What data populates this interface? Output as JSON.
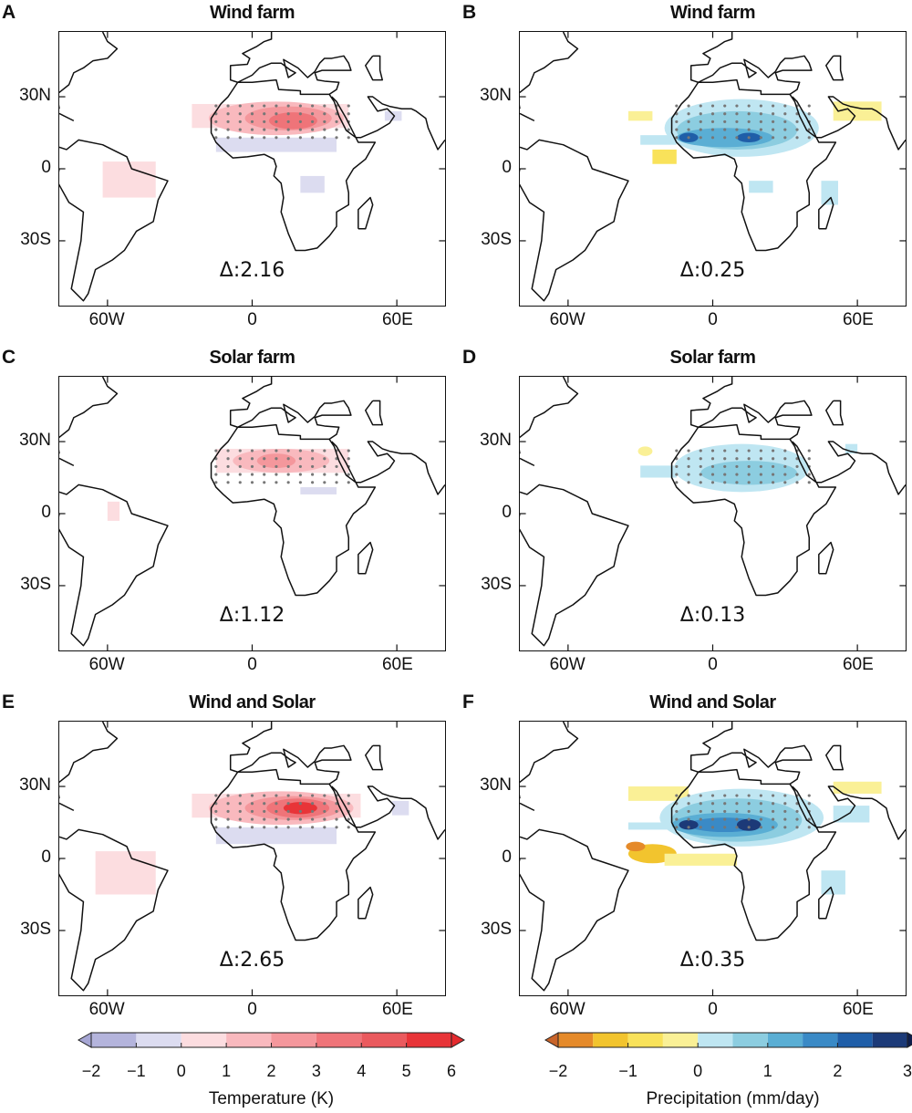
{
  "panels": [
    {
      "letter": "A",
      "title": "Wind farm",
      "delta": "Δ:2.16",
      "variable": "temperature"
    },
    {
      "letter": "B",
      "title": "Wind farm",
      "delta": "Δ:0.25",
      "variable": "precipitation"
    },
    {
      "letter": "C",
      "title": "Solar farm",
      "delta": "Δ:1.12",
      "variable": "temperature"
    },
    {
      "letter": "D",
      "title": "Solar farm",
      "delta": "Δ:0.13",
      "variable": "precipitation"
    },
    {
      "letter": "E",
      "title": "Wind and Solar",
      "delta": "Δ:2.65",
      "variable": "temperature"
    },
    {
      "letter": "F",
      "title": "Wind and Solar",
      "delta": "Δ:0.35",
      "variable": "precipitation"
    }
  ],
  "axes": {
    "lat_ticks": [
      "30N",
      "0",
      "30S"
    ],
    "lon_ticks": [
      "60W",
      "0",
      "60E"
    ],
    "lon_range": [
      -80,
      80
    ],
    "lat_range": [
      -57,
      57
    ]
  },
  "colorbars": {
    "temperature": {
      "label": "Temperature (K)",
      "ticks": [
        "−2",
        "−1",
        "0",
        "1",
        "2",
        "3",
        "4",
        "5",
        "6"
      ],
      "colors": [
        "#b4b4dc",
        "#dcdcf0",
        "#fcdde0",
        "#f9b9be",
        "#f4979c",
        "#ef7479",
        "#ea5a5e",
        "#e83438"
      ],
      "extend_low": "#a6a6d4",
      "extend_high": "#e42a2e"
    },
    "precipitation": {
      "label": "Precipitation (mm/day)",
      "ticks": [
        "−2",
        "−1",
        "0",
        "1",
        "2",
        "3"
      ],
      "colors": [
        "#e58a2a",
        "#f2c42e",
        "#f9e25a",
        "#faf096",
        "#bfe6f2",
        "#8ccde0",
        "#5aaed4",
        "#3a8ac6",
        "#1f5ea8",
        "#1c3a78"
      ],
      "extend_low": "#c8642a",
      "extend_high": "#0e1d4a"
    }
  }
}
